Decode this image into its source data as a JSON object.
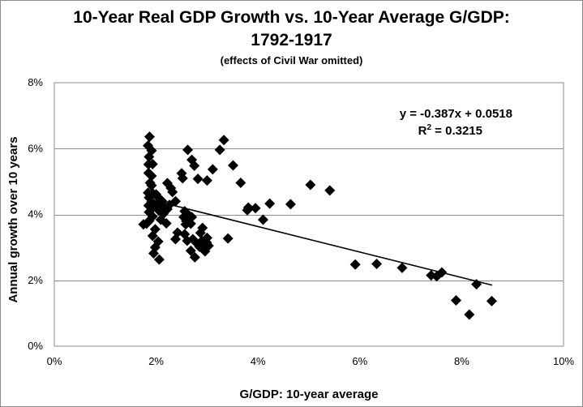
{
  "chart_data": {
    "type": "scatter",
    "title_line1": "10-Year Real GDP Growth vs. 10-Year Average G/GDP:",
    "title_line2": "1792-1917",
    "subtitle": "(effects of Civil War omitted)",
    "xlabel": "G/GDP: 10-year average",
    "ylabel": "Annual growth over 10 years",
    "xlim": [
      0,
      0.1
    ],
    "ylim": [
      0,
      0.08
    ],
    "x_ticks": [
      0,
      0.02,
      0.04,
      0.06,
      0.08,
      0.1
    ],
    "x_tick_labels": [
      "0%",
      "2%",
      "4%",
      "6%",
      "8%",
      "10%"
    ],
    "y_ticks": [
      0,
      0.02,
      0.04,
      0.06,
      0.08
    ],
    "y_tick_labels": [
      "0%",
      "2%",
      "4%",
      "6%",
      "8%"
    ],
    "grid": "horizontal",
    "marker": "diamond",
    "trendline": {
      "slope": -0.387,
      "intercept": 0.0518,
      "x_range": [
        0.018,
        0.086
      ],
      "equation_text": "y = -0.387x + 0.0518",
      "r2_label": "R",
      "r2_exp": "2",
      "r2_value": " = 0.3215"
    },
    "points": [
      {
        "x": 0.0187,
        "y": 0.0636
      },
      {
        "x": 0.0184,
        "y": 0.0609
      },
      {
        "x": 0.0191,
        "y": 0.0594
      },
      {
        "x": 0.0186,
        "y": 0.0575
      },
      {
        "x": 0.0193,
        "y": 0.0553
      },
      {
        "x": 0.0185,
        "y": 0.0552
      },
      {
        "x": 0.0185,
        "y": 0.0526
      },
      {
        "x": 0.0191,
        "y": 0.0517
      },
      {
        "x": 0.0188,
        "y": 0.0496
      },
      {
        "x": 0.0191,
        "y": 0.0488
      },
      {
        "x": 0.0184,
        "y": 0.0466
      },
      {
        "x": 0.0194,
        "y": 0.0463
      },
      {
        "x": 0.0186,
        "y": 0.0451
      },
      {
        "x": 0.0191,
        "y": 0.0439
      },
      {
        "x": 0.0185,
        "y": 0.0427
      },
      {
        "x": 0.0193,
        "y": 0.042
      },
      {
        "x": 0.0186,
        "y": 0.0407
      },
      {
        "x": 0.0193,
        "y": 0.0394
      },
      {
        "x": 0.0186,
        "y": 0.038
      },
      {
        "x": 0.0175,
        "y": 0.037
      },
      {
        "x": 0.0181,
        "y": 0.0372
      },
      {
        "x": 0.0198,
        "y": 0.0355
      },
      {
        "x": 0.0193,
        "y": 0.0335
      },
      {
        "x": 0.0204,
        "y": 0.0318
      },
      {
        "x": 0.0198,
        "y": 0.03
      },
      {
        "x": 0.0195,
        "y": 0.0282
      },
      {
        "x": 0.0206,
        "y": 0.0263
      },
      {
        "x": 0.02,
        "y": 0.0461
      },
      {
        "x": 0.0206,
        "y": 0.0449
      },
      {
        "x": 0.0212,
        "y": 0.044
      },
      {
        "x": 0.0202,
        "y": 0.0427
      },
      {
        "x": 0.0217,
        "y": 0.042
      },
      {
        "x": 0.0205,
        "y": 0.0412
      },
      {
        "x": 0.0222,
        "y": 0.0416
      },
      {
        "x": 0.0214,
        "y": 0.0402
      },
      {
        "x": 0.0209,
        "y": 0.0384
      },
      {
        "x": 0.022,
        "y": 0.0373
      },
      {
        "x": 0.0222,
        "y": 0.0495
      },
      {
        "x": 0.0229,
        "y": 0.048
      },
      {
        "x": 0.0232,
        "y": 0.0468
      },
      {
        "x": 0.0238,
        "y": 0.044
      },
      {
        "x": 0.0226,
        "y": 0.0429
      },
      {
        "x": 0.0242,
        "y": 0.0345
      },
      {
        "x": 0.0238,
        "y": 0.0325
      },
      {
        "x": 0.025,
        "y": 0.0525
      },
      {
        "x": 0.0252,
        "y": 0.051
      },
      {
        "x": 0.0256,
        "y": 0.041
      },
      {
        "x": 0.0254,
        "y": 0.0392
      },
      {
        "x": 0.0259,
        "y": 0.038
      },
      {
        "x": 0.0262,
        "y": 0.0401
      },
      {
        "x": 0.0265,
        "y": 0.0385
      },
      {
        "x": 0.0268,
        "y": 0.0372
      },
      {
        "x": 0.0258,
        "y": 0.037
      },
      {
        "x": 0.0256,
        "y": 0.034
      },
      {
        "x": 0.0261,
        "y": 0.032
      },
      {
        "x": 0.0262,
        "y": 0.0596
      },
      {
        "x": 0.027,
        "y": 0.0566
      },
      {
        "x": 0.0275,
        "y": 0.0548
      },
      {
        "x": 0.027,
        "y": 0.0392
      },
      {
        "x": 0.0268,
        "y": 0.029
      },
      {
        "x": 0.0276,
        "y": 0.027
      },
      {
        "x": 0.0282,
        "y": 0.0508
      },
      {
        "x": 0.0272,
        "y": 0.0325
      },
      {
        "x": 0.028,
        "y": 0.0312
      },
      {
        "x": 0.0285,
        "y": 0.0302
      },
      {
        "x": 0.029,
        "y": 0.032
      },
      {
        "x": 0.0293,
        "y": 0.03
      },
      {
        "x": 0.0296,
        "y": 0.0288
      },
      {
        "x": 0.0299,
        "y": 0.0315
      },
      {
        "x": 0.03,
        "y": 0.0329
      },
      {
        "x": 0.0303,
        "y": 0.0305
      },
      {
        "x": 0.0291,
        "y": 0.0359
      },
      {
        "x": 0.0287,
        "y": 0.0344
      },
      {
        "x": 0.03,
        "y": 0.0503
      },
      {
        "x": 0.0311,
        "y": 0.0537
      },
      {
        "x": 0.0325,
        "y": 0.0596
      },
      {
        "x": 0.0333,
        "y": 0.0626
      },
      {
        "x": 0.0341,
        "y": 0.0327
      },
      {
        "x": 0.0351,
        "y": 0.0549
      },
      {
        "x": 0.0366,
        "y": 0.0496
      },
      {
        "x": 0.0379,
        "y": 0.0413
      },
      {
        "x": 0.0381,
        "y": 0.0421
      },
      {
        "x": 0.0395,
        "y": 0.0419
      },
      {
        "x": 0.041,
        "y": 0.0384
      },
      {
        "x": 0.0423,
        "y": 0.0433
      },
      {
        "x": 0.0464,
        "y": 0.0431
      },
      {
        "x": 0.0503,
        "y": 0.049
      },
      {
        "x": 0.0541,
        "y": 0.0473
      },
      {
        "x": 0.0591,
        "y": 0.0248
      },
      {
        "x": 0.0633,
        "y": 0.025
      },
      {
        "x": 0.0683,
        "y": 0.0238
      },
      {
        "x": 0.074,
        "y": 0.0215
      },
      {
        "x": 0.0751,
        "y": 0.0212
      },
      {
        "x": 0.0761,
        "y": 0.0224
      },
      {
        "x": 0.0789,
        "y": 0.0139
      },
      {
        "x": 0.0815,
        "y": 0.0096
      },
      {
        "x": 0.0829,
        "y": 0.0188
      },
      {
        "x": 0.0859,
        "y": 0.0137
      }
    ]
  }
}
